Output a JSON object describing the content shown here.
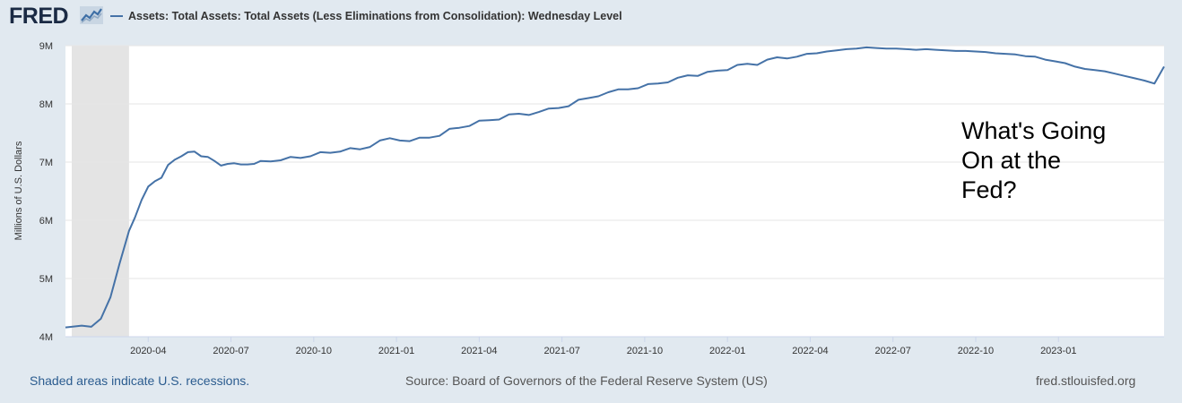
{
  "header": {
    "logo_text": "FRED",
    "series_title": "Assets: Total Assets: Total Assets (Less Eliminations from Consolidation): Wednesday Level",
    "series_color": "#4572a7"
  },
  "footer": {
    "recession_note": "Shaded areas indicate U.S. recessions.",
    "source": "Source: Board of Governors of the Federal Reserve System (US)",
    "site": "fred.stlouisfed.org"
  },
  "chart_data": {
    "type": "line",
    "title": "Assets: Total Assets: Total Assets (Less Eliminations from Consolidation): Wednesday Level",
    "xlabel": "",
    "ylabel": "Millions of U.S. Dollars",
    "ylim": [
      4,
      9
    ],
    "y_unit": "millions",
    "y_ticks": [
      4,
      5,
      6,
      7,
      8,
      9
    ],
    "y_tick_labels": [
      "4M",
      "5M",
      "6M",
      "7M",
      "8M",
      "9M"
    ],
    "x_range": [
      2020.0,
      2023.319
    ],
    "x_ticks": [
      2020.25,
      2020.5,
      2020.75,
      2021.0,
      2021.25,
      2021.5,
      2021.75,
      2022.0,
      2022.25,
      2022.5,
      2022.75,
      2023.0
    ],
    "x_tick_labels": [
      "2020-04",
      "2020-07",
      "2020-10",
      "2021-01",
      "2021-04",
      "2021-07",
      "2021-10",
      "2022-01",
      "2022-04",
      "2022-07",
      "2022-10",
      "2023-01"
    ],
    "recessions": [
      [
        2020.019,
        2020.192
      ]
    ],
    "grid": true,
    "annotation": [
      "What's Going",
      "On at the",
      "Fed?"
    ],
    "series": [
      {
        "name": "Total Assets (Wednesday Level)",
        "color": "#4572a7",
        "x": [
          2020.0,
          2020.019,
          2020.049,
          2020.078,
          2020.107,
          2020.136,
          2020.163,
          2020.192,
          2020.21,
          2020.23,
          2020.25,
          2020.27,
          2020.29,
          2020.31,
          2020.33,
          2020.35,
          2020.37,
          2020.39,
          2020.41,
          2020.43,
          2020.45,
          2020.47,
          2020.49,
          2020.51,
          2020.53,
          2020.55,
          2020.57,
          2020.59,
          2020.62,
          2020.65,
          2020.68,
          2020.71,
          2020.74,
          2020.77,
          2020.8,
          2020.83,
          2020.86,
          2020.89,
          2020.92,
          2020.95,
          2020.98,
          2021.01,
          2021.04,
          2021.07,
          2021.1,
          2021.13,
          2021.16,
          2021.19,
          2021.22,
          2021.25,
          2021.28,
          2021.31,
          2021.34,
          2021.37,
          2021.4,
          2021.43,
          2021.46,
          2021.49,
          2021.52,
          2021.55,
          2021.58,
          2021.61,
          2021.64,
          2021.67,
          2021.7,
          2021.73,
          2021.76,
          2021.79,
          2021.82,
          2021.85,
          2021.88,
          2021.91,
          2021.94,
          2021.97,
          2022.0,
          2022.03,
          2022.06,
          2022.09,
          2022.12,
          2022.15,
          2022.18,
          2022.21,
          2022.24,
          2022.27,
          2022.3,
          2022.33,
          2022.36,
          2022.39,
          2022.42,
          2022.45,
          2022.48,
          2022.51,
          2022.54,
          2022.57,
          2022.6,
          2022.63,
          2022.66,
          2022.69,
          2022.72,
          2022.75,
          2022.78,
          2022.81,
          2022.84,
          2022.87,
          2022.9,
          2022.93,
          2022.96,
          2022.99,
          2023.02,
          2023.05,
          2023.08,
          2023.11,
          2023.14,
          2023.17,
          2023.2,
          2023.23,
          2023.26,
          2023.29,
          2023.319
        ],
        "values": [
          4.16,
          4.17,
          4.19,
          4.17,
          4.31,
          4.68,
          5.25,
          5.82,
          6.05,
          6.35,
          6.58,
          6.67,
          6.73,
          6.95,
          7.04,
          7.1,
          7.17,
          7.18,
          7.1,
          7.09,
          7.02,
          6.94,
          6.97,
          6.98,
          6.96,
          6.96,
          6.97,
          7.02,
          7.01,
          7.03,
          7.09,
          7.07,
          7.1,
          7.17,
          7.16,
          7.18,
          7.24,
          7.22,
          7.26,
          7.37,
          7.41,
          7.37,
          7.36,
          7.42,
          7.42,
          7.45,
          7.57,
          7.59,
          7.62,
          7.71,
          7.72,
          7.73,
          7.82,
          7.83,
          7.81,
          7.86,
          7.92,
          7.93,
          7.96,
          8.07,
          8.1,
          8.13,
          8.2,
          8.25,
          8.25,
          8.27,
          8.34,
          8.35,
          8.37,
          8.45,
          8.49,
          8.48,
          8.55,
          8.57,
          8.58,
          8.67,
          8.69,
          8.67,
          8.76,
          8.8,
          8.78,
          8.81,
          8.86,
          8.87,
          8.9,
          8.92,
          8.94,
          8.95,
          8.97,
          8.96,
          8.95,
          8.95,
          8.94,
          8.93,
          8.94,
          8.93,
          8.92,
          8.91,
          8.91,
          8.9,
          8.89,
          8.87,
          8.86,
          8.85,
          8.82,
          8.81,
          8.76,
          8.73,
          8.7,
          8.64,
          8.6,
          8.58,
          8.56,
          8.52,
          8.48,
          8.44,
          8.4,
          8.35,
          8.64
        ]
      }
    ]
  }
}
